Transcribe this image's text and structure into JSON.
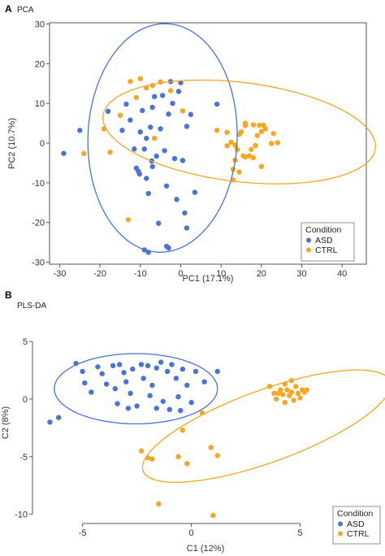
{
  "figure": {
    "panel_a": {
      "letter": "A",
      "title": "PCA"
    },
    "panel_b": {
      "letter": "B",
      "title": "PLS-DA"
    }
  },
  "colors": {
    "ASD": "#4a72d8",
    "CTRL": "#f5a623"
  },
  "chart_data": [
    {
      "type": "scatter",
      "title": "PCA",
      "xlabel": "PC1 (17.1%)",
      "ylabel": "PC2 (10.7%)",
      "xlim": [
        -32.5,
        46
      ],
      "ylim": [
        -30.5,
        30.3
      ],
      "xticks": [
        -30,
        -20,
        -10,
        0,
        10,
        20,
        30,
        40
      ],
      "yticks": [
        -30,
        -20,
        -10,
        0,
        10,
        20,
        30
      ],
      "grid": false,
      "legend": {
        "title": "Condition",
        "placement": "bottom-right",
        "entries": [
          "ASD",
          "CTRL"
        ]
      },
      "series": [
        {
          "name": "ASD",
          "color": "#4a72d8",
          "points": [
            [
              -29,
              -2.6
            ],
            [
              -25,
              3.2
            ],
            [
              -18,
              8
            ],
            [
              -14.5,
              3.2
            ],
            [
              -13.5,
              9.8
            ],
            [
              -12.5,
              5.8
            ],
            [
              -11.5,
              -1.5
            ],
            [
              -11,
              -6.3
            ],
            [
              -10.5,
              -7.1
            ],
            [
              -10,
              2.8
            ],
            [
              -9.5,
              8.2
            ],
            [
              -9,
              -1.5
            ],
            [
              -8.5,
              -8.9
            ],
            [
              -8.5,
              1.2
            ],
            [
              -8,
              -12.7
            ],
            [
              -7.5,
              4.0
            ],
            [
              -7,
              9.0
            ],
            [
              -7,
              -5.9
            ],
            [
              -6,
              -3.3
            ],
            [
              -5.5,
              -20.2
            ],
            [
              -4.5,
              12.0
            ],
            [
              -4,
              -1.9
            ],
            [
              -3.5,
              -10.8
            ],
            [
              -3,
              7.3
            ],
            [
              -2.5,
              15.5
            ],
            [
              -2,
              10.0
            ],
            [
              -1.5,
              -3.9
            ],
            [
              -1,
              -14.2
            ],
            [
              -0.5,
              13.0
            ],
            [
              0,
              15.2
            ],
            [
              0.5,
              -4.4
            ],
            [
              1,
              -17.6
            ],
            [
              1.5,
              4.2
            ],
            [
              1.5,
              -21.4
            ],
            [
              2.5,
              7.2
            ],
            [
              3.5,
              -12.4
            ],
            [
              -9,
              -26.9
            ],
            [
              -8,
              -27.5
            ],
            [
              -3.5,
              -26.0
            ],
            [
              -3,
              -26.4
            ],
            [
              9,
              9.8
            ],
            [
              -6.5,
              11.7
            ],
            [
              -10.2,
              -7.8
            ],
            [
              -5,
              3.6
            ],
            [
              -7.2,
              -4.5
            ]
          ]
        },
        {
          "name": "CTRL",
          "color": "#f5a623",
          "points": [
            [
              -24,
              -2.6
            ],
            [
              -19,
              3.6
            ],
            [
              -17.5,
              -2.3
            ],
            [
              -15,
              7.0
            ],
            [
              -13,
              -19.3
            ],
            [
              -12.5,
              15.5
            ],
            [
              -11,
              11.5
            ],
            [
              -10,
              16.2
            ],
            [
              -8.5,
              13.9
            ],
            [
              -7,
              14.5
            ],
            [
              -6.5,
              1.2
            ],
            [
              -5,
              15.4
            ],
            [
              -2.5,
              13.2
            ],
            [
              0.5,
              8.1
            ],
            [
              11.5,
              2.7
            ],
            [
              11.5,
              -0.7
            ],
            [
              12.5,
              0.2
            ],
            [
              13.5,
              -4.3
            ],
            [
              13,
              -6.6
            ],
            [
              14,
              -1.6
            ],
            [
              14.5,
              -7.3
            ],
            [
              15,
              2.8
            ],
            [
              15.5,
              -3.2
            ],
            [
              16,
              -3.5
            ],
            [
              16,
              4.4
            ],
            [
              17,
              -3.2
            ],
            [
              17.5,
              -1.6
            ],
            [
              18,
              -3.7
            ],
            [
              18.5,
              -0.6
            ],
            [
              19,
              1.9
            ],
            [
              19.5,
              4.5
            ],
            [
              20,
              2.9
            ],
            [
              20.5,
              4.5
            ],
            [
              20,
              -5.9
            ],
            [
              21,
              3.6
            ],
            [
              22.5,
              -0.1
            ],
            [
              23,
              2.4
            ],
            [
              24,
              0.1
            ],
            [
              9,
              3.2
            ],
            [
              13,
              -9.3
            ],
            [
              16,
              5.0
            ],
            [
              18,
              4.6
            ],
            [
              13.5,
              -0.5
            ],
            [
              14.5,
              2.2
            ]
          ]
        }
      ],
      "ellipses": [
        {
          "name": "ASD",
          "cx": -4.5,
          "cy": 1.3,
          "rx": 18.5,
          "ry": 28.8,
          "rotation_deg": -2
        },
        {
          "name": "CTRL",
          "cx": 14.5,
          "cy": 2.8,
          "rx": 34,
          "ry": 12.5,
          "rotation_deg": -7
        }
      ]
    },
    {
      "type": "scatter",
      "title": "PLS-DA",
      "xlabel": "C1 (12%)",
      "ylabel": "C2 (8%)",
      "xlim": [
        -7.3,
        8.6
      ],
      "ylim": [
        -10.8,
        6.7
      ],
      "xticks": [
        -5,
        0,
        5
      ],
      "yticks": [
        -10,
        -5,
        0,
        5
      ],
      "grid": false,
      "legend": {
        "title": "Condition",
        "placement": "bottom-right",
        "entries": [
          "ASD",
          "CTRL"
        ]
      },
      "series": [
        {
          "name": "ASD",
          "color": "#4a72d8",
          "points": [
            [
              -6.5,
              -2.0
            ],
            [
              -6.1,
              -1.6
            ],
            [
              -5.3,
              3.1
            ],
            [
              -5.0,
              2.4
            ],
            [
              -4.9,
              1.4
            ],
            [
              -4.6,
              0.6
            ],
            [
              -4.3,
              2.8
            ],
            [
              -4.1,
              2.2
            ],
            [
              -3.9,
              1.3
            ],
            [
              -3.6,
              2.9
            ],
            [
              -3.5,
              0.9
            ],
            [
              -3.4,
              -0.4
            ],
            [
              -3.3,
              3.0
            ],
            [
              -3.1,
              2.3
            ],
            [
              -3.0,
              1.5
            ],
            [
              -2.8,
              0.5
            ],
            [
              -2.7,
              2.6
            ],
            [
              -2.5,
              -0.6
            ],
            [
              -2.3,
              3.0
            ],
            [
              -2.2,
              1.8
            ],
            [
              -2.0,
              2.9
            ],
            [
              -1.9,
              0.3
            ],
            [
              -1.8,
              1.2
            ],
            [
              -1.6,
              2.7
            ],
            [
              -1.6,
              -0.8
            ],
            [
              -1.4,
              3.2
            ],
            [
              -1.3,
              -0.2
            ],
            [
              -1.1,
              2.4
            ],
            [
              -1.0,
              -0.9
            ],
            [
              -0.9,
              3.0
            ],
            [
              -0.7,
              1.8
            ],
            [
              -0.6,
              0.2
            ],
            [
              -0.5,
              -1.0
            ],
            [
              -0.4,
              2.6
            ],
            [
              -0.2,
              1.2
            ],
            [
              0.0,
              -0.3
            ],
            [
              0.2,
              2.4
            ],
            [
              0.6,
              1.5
            ],
            [
              1.2,
              2.4
            ],
            [
              -2.9,
              -0.8
            ]
          ]
        },
        {
          "name": "CTRL",
          "color": "#f5a623",
          "points": [
            [
              -2.3,
              -4.5
            ],
            [
              -2.0,
              -5.1
            ],
            [
              -1.8,
              -5.2
            ],
            [
              -1.5,
              -9.1
            ],
            [
              -0.4,
              -2.7
            ],
            [
              -0.6,
              -5.0
            ],
            [
              -0.2,
              -5.6
            ],
            [
              0.5,
              -1.2
            ],
            [
              0.9,
              -4.2
            ],
            [
              1.2,
              -4.9
            ],
            [
              1.0,
              -10.1
            ],
            [
              3.6,
              1.1
            ],
            [
              3.8,
              0.5
            ],
            [
              3.9,
              0.0
            ],
            [
              4.0,
              0.5
            ],
            [
              4.1,
              0.8
            ],
            [
              4.2,
              0.4
            ],
            [
              4.3,
              1.3
            ],
            [
              4.3,
              -0.3
            ],
            [
              4.4,
              0.8
            ],
            [
              4.5,
              0.3
            ],
            [
              4.6,
              1.6
            ],
            [
              4.6,
              0.6
            ],
            [
              4.7,
              -0.1
            ],
            [
              4.8,
              1.1
            ],
            [
              4.9,
              0.5
            ],
            [
              5.0,
              0.1
            ],
            [
              5.1,
              0.8
            ],
            [
              5.2,
              0.6
            ],
            [
              5.3,
              0.8
            ]
          ]
        }
      ],
      "ellipses": [
        {
          "name": "ASD",
          "cx": -2.55,
          "cy": 0.9,
          "rx": 3.75,
          "ry": 3.05,
          "rotation_deg": 0
        },
        {
          "name": "CTRL",
          "cx": 3.45,
          "cy": -2.35,
          "rx": 7.0,
          "ry": 2.7,
          "rotation_deg": 39
        }
      ]
    }
  ]
}
